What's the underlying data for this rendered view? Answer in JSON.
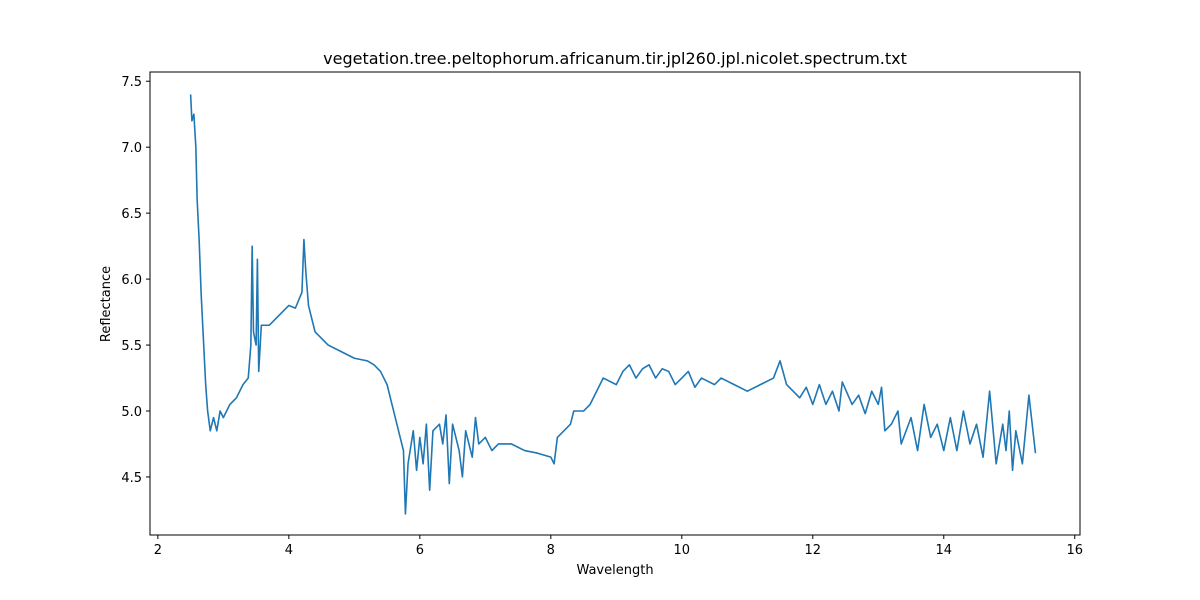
{
  "chart_data": {
    "type": "line",
    "title": "vegetation.tree.peltophorum.africanum.tir.jpl260.jpl.nicolet.spectrum.txt",
    "xlabel": "Wavelength",
    "ylabel": "Reflectance",
    "xlim": [
      1.88,
      16.08
    ],
    "ylim": [
      4.06,
      7.57
    ],
    "xticks": [
      2,
      4,
      6,
      8,
      10,
      12,
      14,
      16
    ],
    "yticks": [
      4.5,
      {
        "value": 5.0,
        "label": "5.0"
      },
      5.5,
      {
        "value": 6.0,
        "label": "6.0"
      },
      6.5,
      {
        "value": 7.0,
        "label": "7.0"
      },
      7.5
    ],
    "series": [
      {
        "color": "#1f77b4",
        "x": [
          2.5,
          2.52,
          2.55,
          2.58,
          2.6,
          2.63,
          2.66,
          2.7,
          2.73,
          2.76,
          2.8,
          2.85,
          2.9,
          2.95,
          3.0,
          3.1,
          3.2,
          3.3,
          3.38,
          3.42,
          3.44,
          3.46,
          3.5,
          3.52,
          3.54,
          3.58,
          3.7,
          3.8,
          3.9,
          4.0,
          4.1,
          4.2,
          4.23,
          4.26,
          4.3,
          4.4,
          4.5,
          4.6,
          4.8,
          5.0,
          5.2,
          5.3,
          5.4,
          5.5,
          5.6,
          5.7,
          5.75,
          5.78,
          5.82,
          5.9,
          5.95,
          6.0,
          6.05,
          6.1,
          6.15,
          6.2,
          6.3,
          6.35,
          6.4,
          6.45,
          6.5,
          6.6,
          6.65,
          6.7,
          6.8,
          6.85,
          6.9,
          7.0,
          7.1,
          7.2,
          7.4,
          7.6,
          7.8,
          8.0,
          8.05,
          8.1,
          8.2,
          8.3,
          8.35,
          8.5,
          8.6,
          8.7,
          8.8,
          9.0,
          9.1,
          9.2,
          9.3,
          9.4,
          9.5,
          9.6,
          9.7,
          9.8,
          9.9,
          10.0,
          10.1,
          10.2,
          10.3,
          10.5,
          10.6,
          10.8,
          11.0,
          11.2,
          11.4,
          11.5,
          11.6,
          11.8,
          11.9,
          12.0,
          12.1,
          12.2,
          12.3,
          12.4,
          12.45,
          12.6,
          12.7,
          12.8,
          12.9,
          13.0,
          13.05,
          13.1,
          13.2,
          13.3,
          13.35,
          13.5,
          13.6,
          13.7,
          13.8,
          13.9,
          14.0,
          14.1,
          14.2,
          14.3,
          14.4,
          14.5,
          14.6,
          14.7,
          14.8,
          14.9,
          14.95,
          15.0,
          15.05,
          15.1,
          15.2,
          15.3,
          15.4
        ],
        "values": [
          7.4,
          7.2,
          7.25,
          7.0,
          6.6,
          6.3,
          5.9,
          5.5,
          5.2,
          5.0,
          4.85,
          4.95,
          4.85,
          5.0,
          4.95,
          5.05,
          5.1,
          5.2,
          5.25,
          5.5,
          6.25,
          5.6,
          5.5,
          6.15,
          5.3,
          5.65,
          5.65,
          5.7,
          5.75,
          5.8,
          5.78,
          5.9,
          6.3,
          6.05,
          5.8,
          5.6,
          5.55,
          5.5,
          5.45,
          5.4,
          5.38,
          5.35,
          5.3,
          5.2,
          5.0,
          4.8,
          4.7,
          4.22,
          4.6,
          4.85,
          4.55,
          4.8,
          4.6,
          4.9,
          4.4,
          4.85,
          4.9,
          4.75,
          4.97,
          4.45,
          4.9,
          4.7,
          4.5,
          4.85,
          4.65,
          4.95,
          4.75,
          4.8,
          4.7,
          4.75,
          4.75,
          4.7,
          4.68,
          4.65,
          4.6,
          4.8,
          4.85,
          4.9,
          5.0,
          5.0,
          5.05,
          5.15,
          5.25,
          5.2,
          5.3,
          5.35,
          5.25,
          5.32,
          5.35,
          5.25,
          5.32,
          5.3,
          5.2,
          5.25,
          5.3,
          5.18,
          5.25,
          5.2,
          5.25,
          5.2,
          5.15,
          5.2,
          5.25,
          5.38,
          5.2,
          5.1,
          5.18,
          5.05,
          5.2,
          5.05,
          5.15,
          5.0,
          5.22,
          5.05,
          5.12,
          4.98,
          5.15,
          5.05,
          5.18,
          4.85,
          4.9,
          5.0,
          4.75,
          4.95,
          4.7,
          5.05,
          4.8,
          4.9,
          4.7,
          4.95,
          4.7,
          5.0,
          4.75,
          4.9,
          4.65,
          5.15,
          4.6,
          4.9,
          4.7,
          5.0,
          4.55,
          4.85,
          4.6,
          5.12,
          4.68
        ]
      }
    ]
  }
}
